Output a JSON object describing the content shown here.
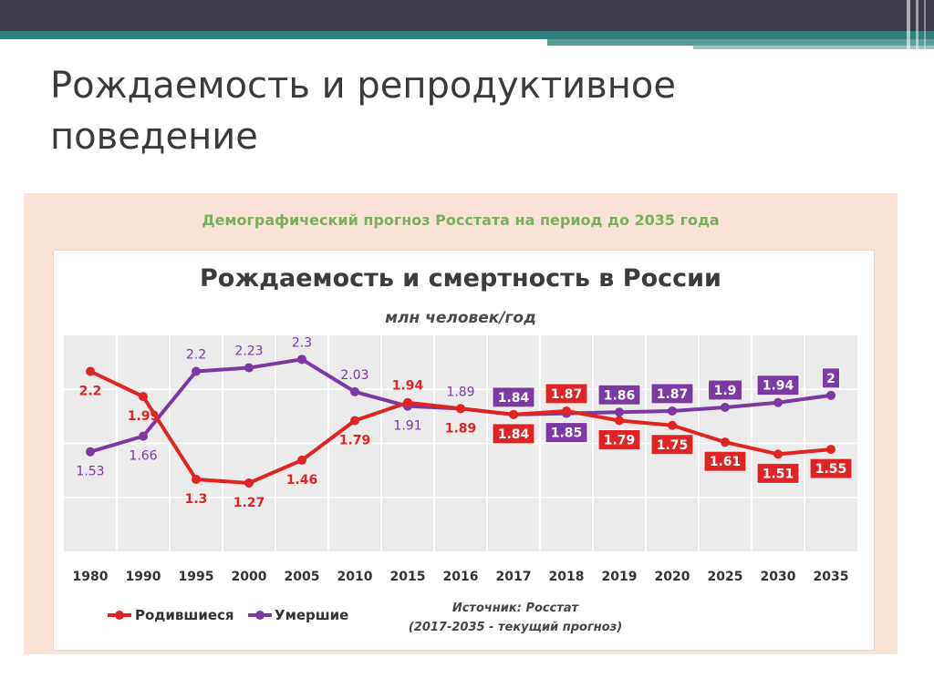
{
  "slide": {
    "title": "Рождаемость и репродуктивное поведение"
  },
  "panel": {
    "heading": "Демографический прогноз Росстата на период до 2035 года",
    "source_line1": "Источник: Росстат",
    "source_line2": "(2017-2035 - текущий прогноз)"
  },
  "colors": {
    "births": "#e02323",
    "deaths": "#7b3aa3",
    "panel_bg": "#f8e3d6",
    "plot_bg": "#ebebeb",
    "heading_green": "#78b060"
  },
  "chart_data": {
    "type": "line",
    "title": "Рождаемость и смертность в России",
    "subtitle": "млн человек/год",
    "categories": [
      "1980",
      "1990",
      "1995",
      "2000",
      "2005",
      "2010",
      "2015",
      "2016",
      "2017",
      "2018",
      "2019",
      "2020",
      "2025",
      "2030",
      "2035"
    ],
    "series": [
      {
        "name": "Родившиеся",
        "color": "#e02323",
        "values": [
          2.2,
          1.99,
          1.3,
          1.27,
          1.46,
          1.79,
          1.94,
          1.89,
          1.84,
          1.87,
          1.79,
          1.75,
          1.61,
          1.51,
          1.55
        ],
        "labels": [
          "2.2",
          "1.99",
          "1.3",
          "1.27",
          "1.46",
          "1.79",
          "1.94",
          "1.89",
          "1.84",
          "1.87",
          "1.79",
          "1.75",
          "1.61",
          "1.51",
          "1.55"
        ]
      },
      {
        "name": "Умершие",
        "color": "#7b3aa3",
        "values": [
          1.53,
          1.66,
          2.2,
          2.23,
          2.3,
          2.03,
          1.91,
          1.89,
          1.84,
          1.85,
          1.86,
          1.87,
          1.9,
          1.94,
          2.0
        ],
        "labels": [
          "1.53",
          "1.66",
          "2.2",
          "2.23",
          "2.3",
          "2.03",
          "1.91",
          "1.89",
          "1.84",
          "1.85",
          "1.86",
          "1.87",
          "1.9",
          "1.94",
          "2"
        ]
      }
    ],
    "ylim": [
      0.7,
      2.5
    ],
    "grid": true,
    "legend": "bottom-left"
  }
}
